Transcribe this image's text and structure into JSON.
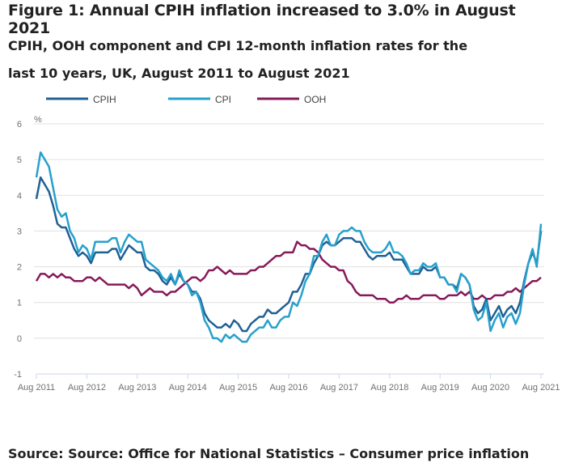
{
  "title": "Figure 1: Annual CPIH inflation increased to 3.0% in August 2021",
  "subtitle": "CPIH, OOH component and CPI 12-month inflation rates for the last 10 years, UK, August 2011 to August 2021",
  "source": "Source: Source: Office for National Statistics – Consumer price inflation",
  "chart_data": {
    "type": "line",
    "ylabel": "%",
    "ylim": [
      -1,
      6
    ],
    "yticks": [
      "6",
      "5",
      "4",
      "3",
      "2",
      "1",
      "0",
      "-1"
    ],
    "xticks": [
      "Aug 2011",
      "Aug 2012",
      "Aug 2013",
      "Aug 2014",
      "Aug 2015",
      "Aug 2016",
      "Aug 2017",
      "Aug 2018",
      "Aug 2019",
      "Aug 2020",
      "Aug 2021"
    ],
    "x_start": "Aug 2011",
    "x_end": "Aug 2021",
    "frequency": "monthly",
    "grid": true,
    "legend": "top-left",
    "series": [
      {
        "name": "CPIH",
        "color": "#206095",
        "values": [
          3.9,
          4.5,
          4.3,
          4.1,
          3.7,
          3.2,
          3.1,
          3.1,
          2.8,
          2.5,
          2.3,
          2.4,
          2.3,
          2.1,
          2.4,
          2.4,
          2.4,
          2.4,
          2.5,
          2.5,
          2.2,
          2.4,
          2.6,
          2.5,
          2.4,
          2.4,
          2.0,
          1.9,
          1.9,
          1.8,
          1.6,
          1.5,
          1.7,
          1.5,
          1.8,
          1.6,
          1.5,
          1.3,
          1.3,
          1.1,
          0.7,
          0.5,
          0.4,
          0.3,
          0.3,
          0.4,
          0.3,
          0.5,
          0.4,
          0.2,
          0.2,
          0.4,
          0.5,
          0.6,
          0.6,
          0.8,
          0.7,
          0.7,
          0.8,
          0.9,
          1.0,
          1.3,
          1.3,
          1.5,
          1.8,
          1.8,
          2.1,
          2.3,
          2.6,
          2.7,
          2.6,
          2.6,
          2.7,
          2.8,
          2.8,
          2.8,
          2.7,
          2.7,
          2.5,
          2.3,
          2.2,
          2.3,
          2.3,
          2.3,
          2.4,
          2.2,
          2.2,
          2.2,
          2.0,
          1.8,
          1.8,
          1.8,
          2.0,
          1.9,
          1.9,
          2.0,
          1.7,
          1.7,
          1.5,
          1.5,
          1.4,
          1.8,
          1.7,
          1.5,
          0.9,
          0.7,
          0.8,
          1.1,
          0.5,
          0.7,
          0.9,
          0.6,
          0.8,
          0.9,
          0.7,
          1.0,
          1.6,
          2.1,
          2.4,
          2.1,
          3.0
        ]
      },
      {
        "name": "CPI",
        "color": "#27a0cc",
        "values": [
          4.5,
          5.2,
          5.0,
          4.8,
          4.2,
          3.6,
          3.4,
          3.5,
          3.0,
          2.8,
          2.4,
          2.6,
          2.5,
          2.2,
          2.7,
          2.7,
          2.7,
          2.7,
          2.8,
          2.8,
          2.4,
          2.7,
          2.9,
          2.8,
          2.7,
          2.7,
          2.2,
          2.1,
          2.0,
          1.9,
          1.7,
          1.6,
          1.8,
          1.5,
          1.9,
          1.6,
          1.5,
          1.2,
          1.3,
          1.0,
          0.5,
          0.3,
          0.0,
          0.0,
          -0.1,
          0.1,
          0.0,
          0.1,
          0.0,
          -0.1,
          -0.1,
          0.1,
          0.2,
          0.3,
          0.3,
          0.5,
          0.3,
          0.3,
          0.5,
          0.6,
          0.6,
          1.0,
          0.9,
          1.2,
          1.6,
          1.8,
          2.3,
          2.3,
          2.7,
          2.9,
          2.6,
          2.6,
          2.9,
          3.0,
          3.0,
          3.1,
          3.0,
          3.0,
          2.7,
          2.5,
          2.4,
          2.4,
          2.4,
          2.5,
          2.7,
          2.4,
          2.4,
          2.3,
          2.1,
          1.8,
          1.9,
          1.9,
          2.1,
          2.0,
          2.0,
          2.1,
          1.7,
          1.7,
          1.5,
          1.5,
          1.3,
          1.8,
          1.7,
          1.5,
          0.8,
          0.5,
          0.6,
          1.0,
          0.2,
          0.5,
          0.7,
          0.3,
          0.6,
          0.7,
          0.4,
          0.7,
          1.5,
          2.1,
          2.5,
          2.0,
          3.2
        ]
      },
      {
        "name": "OOH",
        "color": "#871a5b",
        "values": [
          1.6,
          1.8,
          1.8,
          1.7,
          1.8,
          1.7,
          1.8,
          1.7,
          1.7,
          1.6,
          1.6,
          1.6,
          1.7,
          1.7,
          1.6,
          1.7,
          1.6,
          1.5,
          1.5,
          1.5,
          1.5,
          1.5,
          1.4,
          1.5,
          1.4,
          1.2,
          1.3,
          1.4,
          1.3,
          1.3,
          1.3,
          1.2,
          1.3,
          1.3,
          1.4,
          1.5,
          1.6,
          1.7,
          1.7,
          1.6,
          1.7,
          1.9,
          1.9,
          2.0,
          1.9,
          1.8,
          1.9,
          1.8,
          1.8,
          1.8,
          1.8,
          1.9,
          1.9,
          2.0,
          2.0,
          2.1,
          2.2,
          2.3,
          2.3,
          2.4,
          2.4,
          2.4,
          2.7,
          2.6,
          2.6,
          2.5,
          2.5,
          2.4,
          2.2,
          2.1,
          2.0,
          2.0,
          1.9,
          1.9,
          1.6,
          1.5,
          1.3,
          1.2,
          1.2,
          1.2,
          1.2,
          1.1,
          1.1,
          1.1,
          1.0,
          1.0,
          1.1,
          1.1,
          1.2,
          1.1,
          1.1,
          1.1,
          1.2,
          1.2,
          1.2,
          1.2,
          1.1,
          1.1,
          1.2,
          1.2,
          1.2,
          1.3,
          1.2,
          1.3,
          1.1,
          1.1,
          1.2,
          1.1,
          1.1,
          1.2,
          1.2,
          1.2,
          1.3,
          1.3,
          1.4,
          1.3,
          1.4,
          1.5,
          1.6,
          1.6,
          1.7
        ]
      }
    ]
  }
}
